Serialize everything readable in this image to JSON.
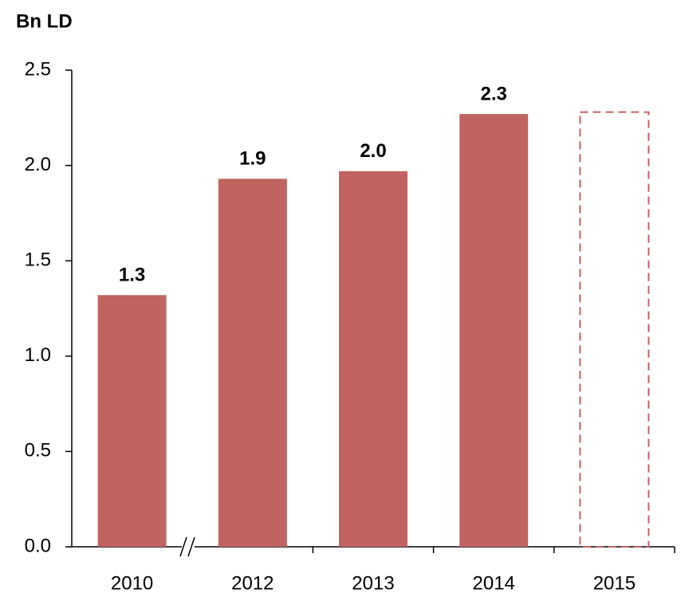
{
  "chart_data": {
    "type": "bar",
    "title": "Bn LD",
    "categories": [
      "2010",
      "2012",
      "2013",
      "2014",
      "2015"
    ],
    "values": [
      1.32,
      1.93,
      1.97,
      2.27,
      2.28
    ],
    "value_labels": [
      "1.3",
      "1.9",
      "2.0",
      "2.3",
      null
    ],
    "styles": [
      "solid",
      "solid",
      "solid",
      "solid",
      "dashed"
    ],
    "color": "#c06361",
    "ylim": [
      0,
      2.5
    ],
    "yticks": [
      {
        "value": 0,
        "label": "0.0"
      },
      0.5,
      {
        "value": 1,
        "label": "1.0"
      },
      1.5,
      {
        "value": 2,
        "label": "2.0"
      },
      2.5
    ],
    "grid": false
  }
}
